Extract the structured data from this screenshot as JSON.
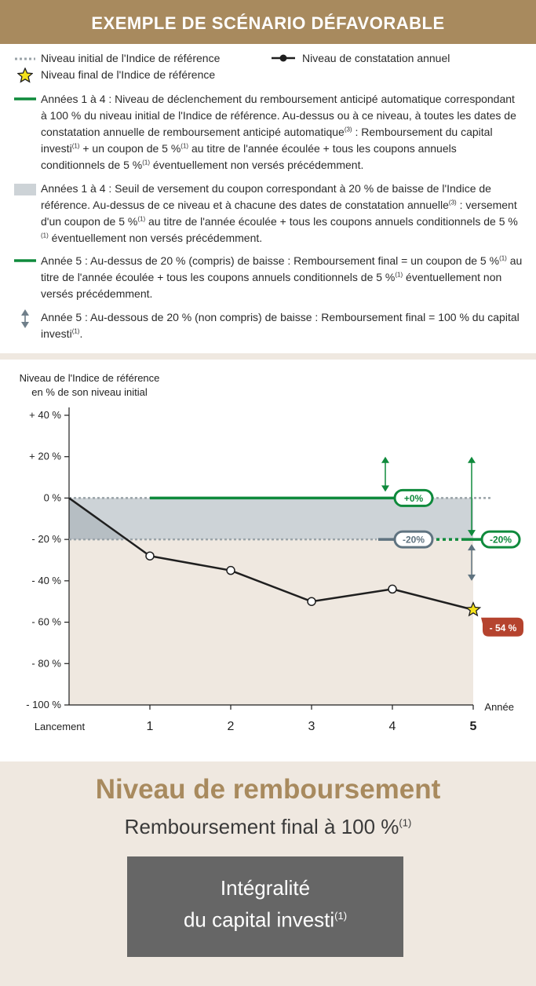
{
  "header": {
    "title": "EXEMPLE DE SCÉNARIO DÉFAVORABLE"
  },
  "legend": {
    "initial_level": "Niveau initial de l'Indice de référence",
    "annual_level": "Niveau de constatation annuel",
    "final_level": "Niveau final de l'Indice de référence",
    "item1": {
      "text_a": "Années 1 à 4 : Niveau de déclenchement du remboursement anticipé automatique correspondant à 100 % du niveau initial de l'Indice de référence. Au-dessus ou à ce niveau, à toutes les dates de constatation annuelle de remboursement anticipé automatique",
      "sup_a": "(3)",
      "text_b": " : Remboursement du capital investi",
      "sup_b": "(1)",
      "text_c": " + un coupon de 5 %",
      "sup_c": "(1)",
      "text_d": " au titre de l'année écoulée + tous les coupons annuels conditionnels de 5 %",
      "sup_d": "(1)",
      "text_e": " éventuellement non versés précédemment."
    },
    "item2": {
      "text_a": "Années 1 à 4 : Seuil de versement du coupon correspondant à 20 % de baisse de l'Indice de référence. Au-dessus de ce niveau et à chacune des dates de constatation annuelle",
      "sup_a": "(3)",
      "text_b": " : versement d'un coupon de 5 %",
      "sup_b": "(1)",
      "text_c": " au titre de l'année écoulée + tous les coupons annuels conditionnels de 5 %",
      "sup_c": "(1)",
      "text_d": " éventuellement non versés précédemment."
    },
    "item3": {
      "text_a": "Année 5 : Au-dessus de 20 % (compris) de baisse : Remboursement final = un coupon de 5 %",
      "sup_a": "(1)",
      "text_b": " au titre de l'année écoulée + tous les coupons annuels conditionnels de 5 %",
      "sup_b": "(1)",
      "text_c": " éventuellement non versés précédemment."
    },
    "item4": {
      "text_a": "Année 5 : Au-dessous de 20 % (non compris) de baisse : Remboursement final = 100 % du capital investi",
      "sup_a": "(1)",
      "text_b": "."
    }
  },
  "colors": {
    "gold": "#a88a5e",
    "green": "#0f8a3c",
    "slate": "#5f7380",
    "band": "#cdd3d7",
    "below": "#efe8e0",
    "red": "#b5432e"
  },
  "chart_data": {
    "type": "line",
    "ylabel_line1": "Niveau de l'Indice de référence",
    "ylabel_line2": "en % de son niveau initial",
    "xlabel": "Année",
    "ylim": [
      -100,
      40
    ],
    "yticks": [
      40,
      20,
      0,
      -20,
      -40,
      -60,
      -80,
      -100
    ],
    "ytick_labels": [
      "+ 40 %",
      "+ 20 %",
      "0 %",
      "- 20 %",
      "- 40 %",
      "- 60 %",
      "- 80 %",
      "- 100 %"
    ],
    "categories": [
      "Lancement",
      "1",
      "2",
      "3",
      "4",
      "5"
    ],
    "x": [
      0,
      1,
      2,
      3,
      4,
      5
    ],
    "series": [
      {
        "values": [
          0,
          -28,
          -35,
          -50,
          -44,
          -54
        ]
      }
    ],
    "early_redemption_barrier": 0,
    "coupon_barrier": -20,
    "labels": {
      "barrier_0": "+0%",
      "barrier_20_years": "-20%",
      "barrier_20_final": "-20%",
      "final_value": "- 54 %"
    }
  },
  "bottom": {
    "title": "Niveau de remboursement",
    "subtitle": "Remboursement final à 100 %",
    "subtitle_sup": "(1)",
    "box_line1": "Intégralité",
    "box_line2": "du capital investi",
    "box_sup": "(1)"
  }
}
